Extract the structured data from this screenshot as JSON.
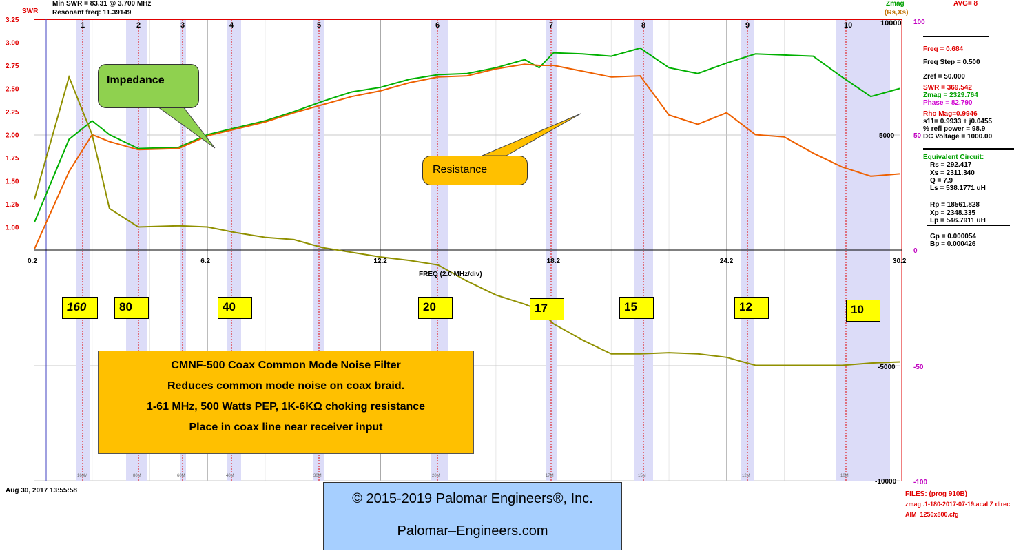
{
  "header": {
    "swr_label": "SWR",
    "min_swr": "Min SWR = 83.31 @ 3.700 MHz",
    "resonant": "Resonant freq: 11.39149",
    "zmag_label": "Zmag",
    "rsxs_label": "(Rs,Xs)",
    "avg": "AVG= 8"
  },
  "readout": {
    "freq": "Freq = 0.684",
    "freq_step": "Freq Step = 0.500",
    "zref": "Zref = 50.000",
    "swr": "SWR = 369.542",
    "zmag": "Zmag = 2329.764",
    "phase": "Phase = 82.790",
    "rho": "Rho Mag=0.9946",
    "s11": "s11= 0.9933 + j0.0455",
    "refl": "% refl power = 98.9",
    "dcv": "DC Voltage = 1000.00",
    "equiv": "Equivalent Circuit:",
    "rs": "Rs = 292.417",
    "xs": "Xs = 2311.340",
    "q": "Q = 7.9",
    "ls": "Ls = 538.1771 uH",
    "rp": "Rp = 18561.828",
    "xp": "Xp = 2348.335",
    "lp": "Lp = 546.7911 uH",
    "gp": "Gp = 0.000054",
    "bp": "Bp = 0.000426"
  },
  "footer": {
    "date": "Aug 30, 2017 13:55:58",
    "files": "FILES: (prog 910B)",
    "file1": "zmag .1-180-2017-07-19.acal Z direc",
    "file2": "AIM_1250x800.cfg"
  },
  "callouts": {
    "impedance": "Impedance",
    "resistance": "Resistance"
  },
  "bands": [
    "160",
    "80",
    "40",
    "20",
    "17",
    "15",
    "12",
    "10"
  ],
  "description": {
    "line1": "CMNF-500 Coax Common Mode Noise Filter",
    "line2": "Reduces common mode noise on coax braid.",
    "line3": "1-61 MHz, 500 Watts PEP, 1K-6KΩ choking resistance",
    "line4": "Place in coax line near receiver input"
  },
  "copyright": {
    "line1": "© 2015-2019 Palomar Engineers®, Inc.",
    "line2": "Palomar–Engineers.com"
  },
  "chart_data": {
    "type": "line",
    "xlabel": "FREQ (2.0 MHz/div)",
    "xlim": [
      0.2,
      30.2
    ],
    "x_ticks": [
      0.2,
      6.2,
      12.2,
      18.2,
      24.2,
      30.2
    ],
    "swr_ticks": [
      "3.25",
      "3.00",
      "2.75",
      "2.50",
      "2.25",
      "2.00",
      "1.75",
      "1.50",
      "1.25",
      "1.00"
    ],
    "right_ticks": [
      "10000",
      "5000",
      "-5000",
      "-10000"
    ],
    "phase_ticks": [
      "100",
      "50",
      "0",
      "-50",
      "-100"
    ],
    "marker_numbers": [
      "1",
      "2",
      "3",
      "4",
      "5",
      "6",
      "7",
      "8",
      "9",
      "10"
    ],
    "bottom_marker_labels": [
      "160M",
      "80M",
      "60M",
      "40M",
      "30M",
      "20M",
      "17M",
      "15M",
      "12M",
      "10M"
    ],
    "ylim_ohms": [
      -10000,
      10000
    ],
    "series": [
      {
        "name": "Zmag",
        "color": "#00b000",
        "x": [
          0.2,
          1.4,
          2.2,
          2.8,
          3.8,
          5.2,
          6.2,
          7.2,
          8.2,
          9.2,
          10.2,
          11.2,
          12.2,
          13.2,
          14.2,
          15.2,
          16.2,
          17.2,
          17.7,
          18.2,
          19.2,
          20.2,
          21.2,
          22.2,
          23.2,
          24.2,
          25.2,
          26.2,
          27.2,
          28.2,
          29.2,
          30.2
        ],
        "y": [
          1200,
          4800,
          5600,
          5000,
          4400,
          4450,
          5000,
          5300,
          5600,
          6000,
          6450,
          6850,
          7050,
          7400,
          7600,
          7650,
          7900,
          8250,
          7900,
          8550,
          8500,
          8400,
          8750,
          7900,
          7650,
          8100,
          8500,
          8450,
          8400,
          7500,
          6650,
          7000
        ]
      },
      {
        "name": "Rs",
        "color": "#ee6000",
        "x": [
          0.2,
          1.4,
          2.2,
          2.8,
          3.8,
          5.2,
          6.2,
          7.2,
          8.2,
          9.2,
          10.2,
          11.2,
          12.2,
          13.2,
          14.2,
          15.2,
          16.2,
          17.2,
          17.7,
          18.2,
          19.2,
          20.2,
          21.2,
          22.2,
          23.2,
          24.2,
          25.2,
          26.2,
          27.2,
          28.2,
          29.2,
          30.2
        ],
        "y": [
          50,
          3400,
          5000,
          4700,
          4350,
          4400,
          4950,
          5250,
          5550,
          5950,
          6300,
          6650,
          6900,
          7250,
          7500,
          7550,
          7850,
          8050,
          8000,
          8000,
          7750,
          7500,
          7550,
          5850,
          5450,
          5950,
          5000,
          4900,
          4200,
          3600,
          3200,
          3300
        ]
      },
      {
        "name": "Xs",
        "color": "#909000",
        "x": [
          0.2,
          1.4,
          2.2,
          2.8,
          3.8,
          5.2,
          6.2,
          7.2,
          8.2,
          9.2,
          10.2,
          11.2,
          12.2,
          13.2,
          14.2,
          15.2,
          16.2,
          17.2,
          17.7,
          18.2,
          19.2,
          20.2,
          21.2,
          22.2,
          23.2,
          24.2,
          25.2,
          26.2,
          27.2,
          28.2,
          29.2,
          30.2
        ],
        "y": [
          2200,
          7500,
          5000,
          1800,
          1000,
          1050,
          1000,
          750,
          550,
          450,
          100,
          -100,
          -300,
          -450,
          -650,
          -1350,
          -1950,
          -2350,
          -2600,
          -3200,
          -3900,
          -4500,
          -4500,
          -4450,
          -4500,
          -4650,
          -5000,
          -5000,
          -5000,
          -5000,
          -4900,
          -4850
        ]
      }
    ]
  }
}
